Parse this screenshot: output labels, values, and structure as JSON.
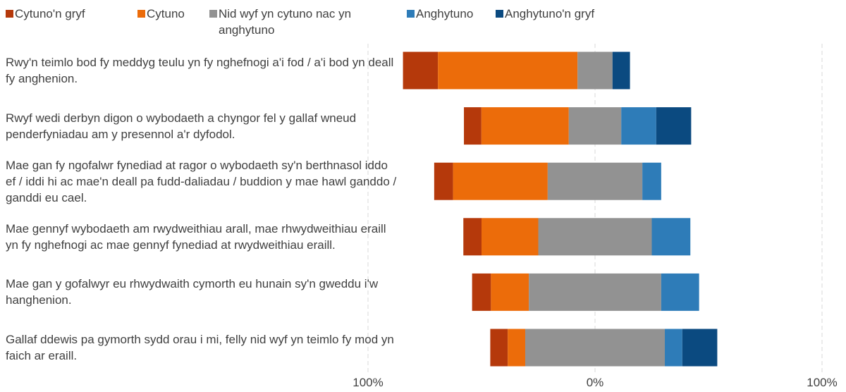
{
  "chart_data": {
    "type": "diverging_bar",
    "categories": [
      "Rwy'n teimlo bod fy meddyg teulu yn fy nghefnogi a'i fod / a'i bod yn deall fy anghenion.",
      "Rwyf wedi derbyn digon o wybodaeth a chyngor fel y gallaf wneud penderfyniadau am y presennol a'r dyfodol.",
      "Mae gan fy ngofalwr fynediad at ragor o wybodaeth sy'n berthnasol iddo ef / iddi hi ac mae'n deall pa fudd-daliadau / buddion y mae hawl ganddo / ganddi eu cael.",
      "Mae gennyf wybodaeth am rwydweithiau arall, mae rhwydweithiau eraill yn fy nghefnogi ac mae gennyf fynediad at rwydweithiau eraill.",
      "Mae gan y gofalwyr eu rhwydwaith cymorth eu hunain sy'n gweddu i'w hanghenion.",
      "Gallaf ddewis pa gymorth sydd orau i mi, felly nid wyf yn teimlo fy mod yn faich ar eraill."
    ],
    "series": [
      {
        "name": "Cytuno'n gryf",
        "color": "#b5390b",
        "values": [
          15.4,
          7.7,
          8.3,
          8,
          8.3,
          7.7
        ]
      },
      {
        "name": "Cytuno",
        "color": "#ec6c0a",
        "values": [
          61.5,
          38.5,
          41.7,
          25,
          16.7,
          7.7
        ]
      },
      {
        "name": "Nid wyf yn cytuno nac yn anghytuno",
        "color": "#929292",
        "values": [
          15.4,
          23.1,
          41.7,
          50,
          58.3,
          61.5
        ]
      },
      {
        "name": "Anghytuno",
        "color": "#2e7cb8",
        "values": [
          0,
          15.4,
          8.3,
          17,
          16.7,
          7.7
        ]
      },
      {
        "name": "Anghytuno'n gryf",
        "color": "#0b4a80",
        "values": [
          7.7,
          15.4,
          0,
          0,
          0,
          15.4
        ]
      }
    ],
    "xlim": [
      -100,
      100
    ],
    "xticks": [
      {
        "value": -100,
        "label": "100%"
      },
      {
        "value": 0,
        "label": "0%"
      },
      {
        "value": 100,
        "label": "100%"
      }
    ],
    "grid": true
  }
}
